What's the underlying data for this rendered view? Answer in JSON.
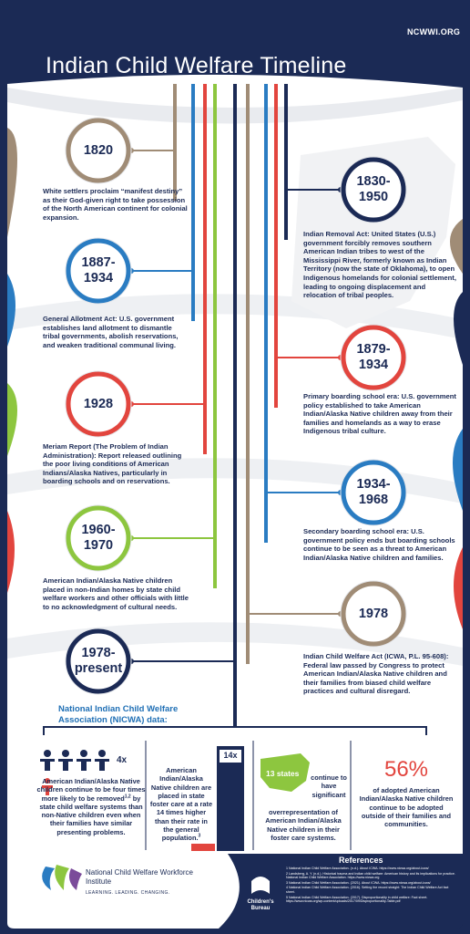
{
  "header": {
    "site": "NCWWI.ORG",
    "title": "Indian Child Welfare Timeline"
  },
  "events": [
    {
      "date": "1820",
      "text": "White settlers proclaim “manifest destiny” as their God-given right to take possession of the North American continent for colonial expansion."
    },
    {
      "date": "1830-1950",
      "text": "Indian Removal Act: United States (U.S.) government forcibly removes southern American Indian tribes to west of the Mississippi River, formerly known as Indian Territory (now the state of Oklahoma), to open Indigenous homelands for colonial settlement, leading to ongoing displacement and relocation of tribal peoples."
    },
    {
      "date": "1887-1934",
      "text": "General Allotment Act: U.S. government establishes land allotment to dismantle tribal governments, abolish reservations, and weaken traditional communal living."
    },
    {
      "date": "1879-1934",
      "text": "Primary boarding school era: U.S. government policy established to take American Indian/Alaska Native children away from their families and homelands as a way to erase Indigenous tribal culture."
    },
    {
      "date": "1928",
      "text": "Meriam Report (The Problem of Indian Administration): Report released outlining the poor living conditions of American Indians/Alaska Natives, particularly in boarding schools and on reservations."
    },
    {
      "date": "1934-1968",
      "text": "Secondary boarding school era: U.S. government policy ends but boarding schools continue to be seen as a threat to American Indian/Alaska Native children and families."
    },
    {
      "date": "1960-1970",
      "text": "American Indian/Alaska Native children placed in non-Indian homes by state child welfare workers and other officials with little to no acknowledgment of cultural needs."
    },
    {
      "date": "1978",
      "text": "Indian Child Welfare Act (ICWA, P.L. 95-608): Federal law passed by Congress to protect American Indian/Alaska Native children and their families from biased child welfare practices and cultural disregard."
    },
    {
      "date": "1978-present"
    }
  ],
  "stats": {
    "heading": "National Indian Child Welfare Association (NICWA) data:",
    "items": [
      {
        "figure": "4x",
        "text_before": "American Indian/Alaska Native children continue to be four times more likely to be removed",
        "superscript": "1,2",
        "text_after": "by state child welfare systems than non-Native children even when their families have similar presenting problems."
      },
      {
        "figure": "14x",
        "text": "American Indian/Alaska Native children are placed in state foster care at a rate 14 times higher than their rate in the general population.",
        "superscript": "3"
      },
      {
        "figure": "13 states",
        "text_before": "continue to have significant",
        "text_after": "overrepresentation of American Indian/Alaska Native children in their foster care systems."
      },
      {
        "figure": "56%",
        "text": "of adopted American Indian/Alaska Native children continue to be adopted outside of their families and communities."
      }
    ]
  },
  "footer": {
    "ncwwi_name": "National Child Welfare Workforce Institute",
    "ncwwi_tagline": "LEARNING. LEADING. CHANGING.",
    "cb_name": "Children's Bureau",
    "references_title": "References",
    "references": [
      "1 National Indian Child Welfare Association. (n.d.). About ICWA. https://www.nicwa.org/about-icwa/",
      "2 Landsberg, A. Y. (n.d.). Historical trauma and Indian child welfare: American history and its implications for practice. National Indian Child Welfare Association. https://www.nicwa.org",
      "3 National Indian Child Welfare Association. (2021). About ICWA. https://www.nicwa.org/about-icwa/",
      "4 National Indian Child Welfare Association. (2016). Setting the record straight: The Indian Child Welfare Act fact sheet.",
      "5 National Indian Child Welfare Association. (2017). Disproportionality in child welfare: Fact sheet. https://www.nicwa.org/wp-content/uploads/2017/09/Disproportionality-Table.pdf"
    ]
  }
}
